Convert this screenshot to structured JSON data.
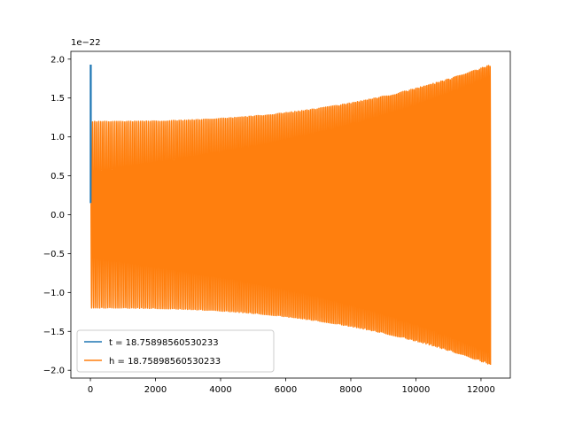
{
  "chart_data": {
    "type": "line",
    "title": "",
    "xlabel": "",
    "ylabel": "",
    "y_offset_label": "1e−22",
    "xlim": [
      -600,
      12900
    ],
    "ylim": [
      -2.1,
      2.1
    ],
    "xticks": [
      0,
      2000,
      4000,
      6000,
      8000,
      10000,
      12000
    ],
    "xtick_labels": [
      "0",
      "2000",
      "4000",
      "6000",
      "8000",
      "10000",
      "12000"
    ],
    "yticks": [
      -2.0,
      -1.5,
      -1.0,
      -0.5,
      0.0,
      0.5,
      1.0,
      1.5,
      2.0
    ],
    "ytick_labels": [
      "−2.0",
      "−1.5",
      "−1.0",
      "−0.5",
      "0.0",
      "0.5",
      "1.0",
      "1.5",
      "2.0"
    ],
    "grid": false,
    "legend_position": "lower-left",
    "series": [
      {
        "name": "t = 18.75898560530233",
        "color": "#1f77b4",
        "kind": "initial spike",
        "points": [
          [
            0,
            0.15
          ],
          [
            0,
            1.92
          ],
          [
            20,
            1.92
          ],
          [
            20,
            0.15
          ]
        ]
      },
      {
        "name": "h = 18.75898560530233",
        "color": "#ff7f0e",
        "kind": "oscillating chirp",
        "x_start": 20,
        "x_end": 12290,
        "start_amplitude": 1.2,
        "end_amplitude": 1.93,
        "start_value": 0.15,
        "end_value": -1.93
      }
    ]
  }
}
